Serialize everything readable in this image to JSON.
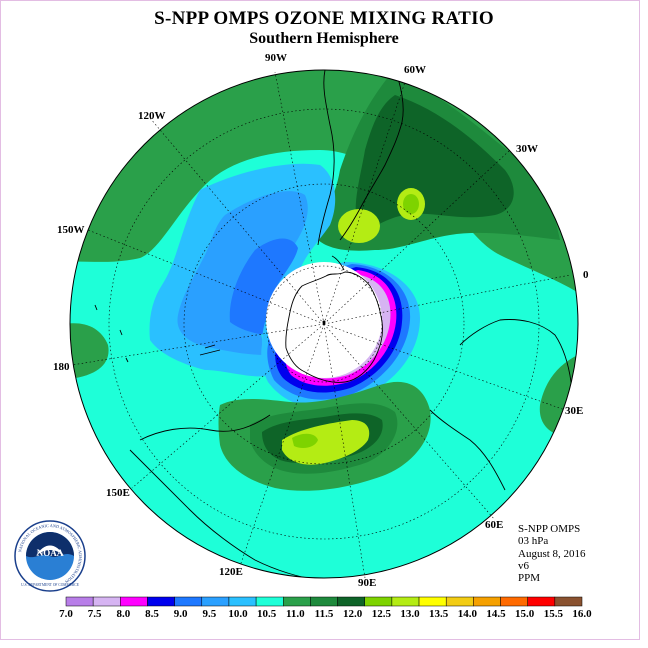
{
  "title": "S-NPP OMPS OZONE MIXING RATIO",
  "subtitle": "Southern Hemisphere",
  "longitude_labels": {
    "lon_90w": "90W",
    "lon_60w": "60W",
    "lon_120w": "120W",
    "lon_30w": "30W",
    "lon_150w": "150W",
    "lon_0": "0",
    "lon_180": "180",
    "lon_30e": "30E",
    "lon_150e": "150E",
    "lon_60e": "60E",
    "lon_120e": "120E",
    "lon_90e": "90E"
  },
  "info": {
    "instrument": "S-NPP OMPS",
    "level": "03 hPa",
    "date": "August 8, 2016",
    "version": "v6",
    "units": "PPM"
  },
  "logo": {
    "text": "NOAA",
    "ring_text": "NATIONAL OCEANIC AND ATMOSPHERIC ADMINISTRATION",
    "ring_text_bottom": "U.S. DEPARTMENT OF COMMERCE"
  },
  "colorbar": {
    "colors": [
      "#b87ee8",
      "#d6b4f2",
      "#ff00ff",
      "#0000ee",
      "#1e78ff",
      "#2aa0ff",
      "#2ac0ff",
      "#1effd8",
      "#2aa04a",
      "#1e8a3c",
      "#0e6428",
      "#7ed300",
      "#b4ec14",
      "#ffff00",
      "#f2cc14",
      "#f5a000",
      "#ff6a00",
      "#ff0000",
      "#8a5230"
    ],
    "ticks": [
      "7.0",
      "7.5",
      "8.0",
      "8.5",
      "9.0",
      "9.5",
      "10.0",
      "10.5",
      "11.0",
      "11.5",
      "12.0",
      "12.5",
      "13.0",
      "13.5",
      "14.0",
      "14.5",
      "15.0",
      "15.5",
      "16.0"
    ]
  }
}
